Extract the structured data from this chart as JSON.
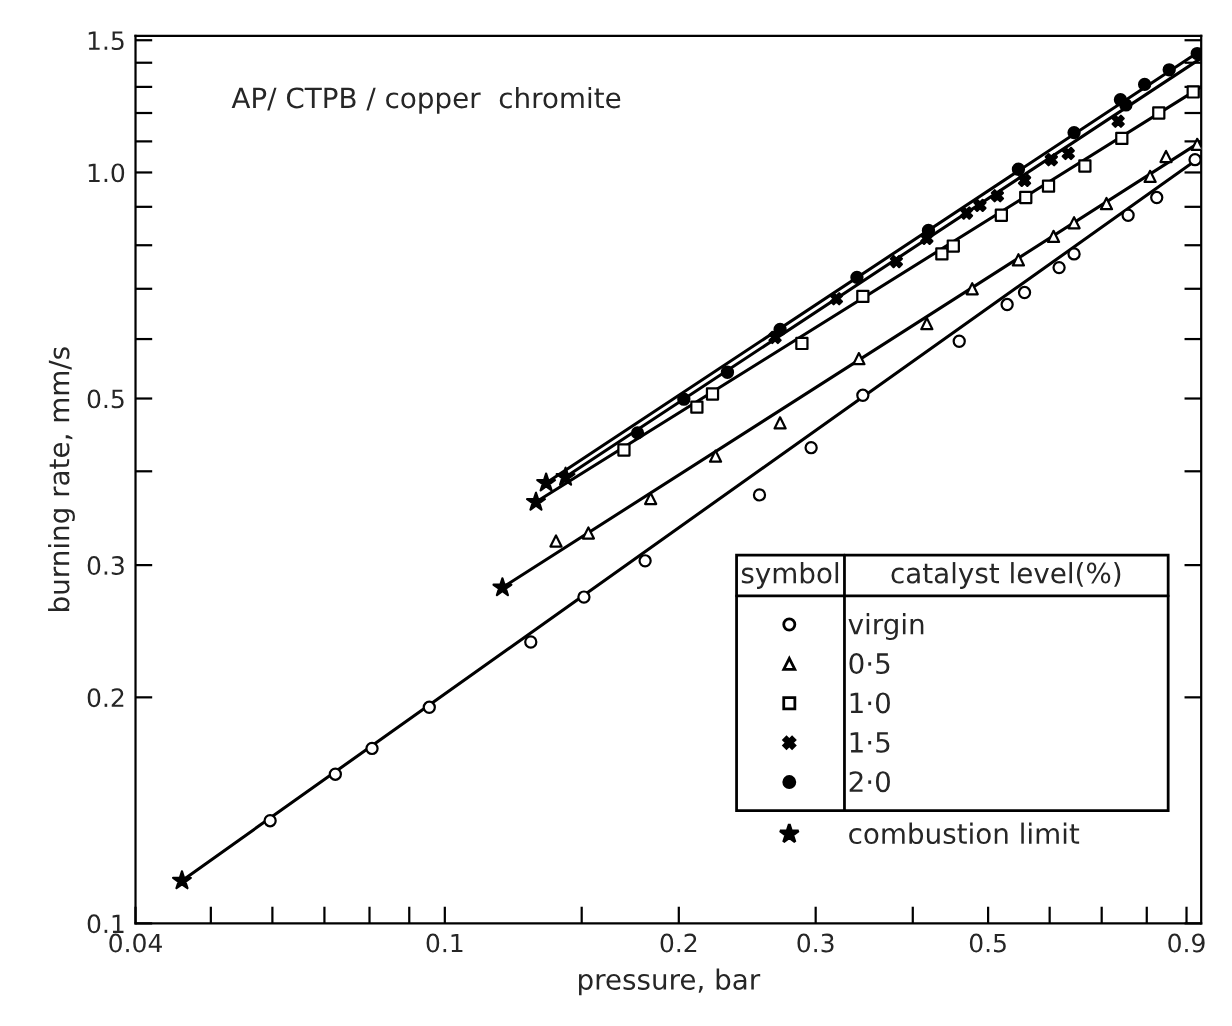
{
  "chart_data": {
    "type": "scatter",
    "title": "AP/ CTPB / copper  chromite",
    "xlabel": "pressure, bar",
    "ylabel": "burning rate, mm/s",
    "legend_title": "catalyst level(%)",
    "annotations": [
      "symbol"
    ],
    "log": "xy",
    "grid": false,
    "legend": "bottom right",
    "xlim": [
      0.04,
      0.94
    ],
    "ylim": [
      0.1,
      1.52
    ],
    "xticks": [
      0.04,
      {
        "value": 0.05,
        "label": null
      },
      {
        "value": 0.06,
        "label": null
      },
      {
        "value": 0.07,
        "label": null
      },
      {
        "value": 0.08,
        "label": null
      },
      {
        "value": 0.09,
        "label": null
      },
      0.1,
      {
        "value": 0.15,
        "label": null
      },
      0.2,
      0.3,
      {
        "value": 0.4,
        "label": null
      },
      0.5,
      {
        "value": 0.6,
        "label": null
      },
      {
        "value": 0.7,
        "label": null
      },
      {
        "value": 0.8,
        "label": null
      },
      0.9
    ],
    "yticks": [
      0.1,
      0.2,
      0.3,
      {
        "value": 0.4,
        "label": null
      },
      0.5,
      {
        "value": 0.6,
        "label": null
      },
      {
        "value": 0.7,
        "label": null
      },
      {
        "value": 0.8,
        "label": null
      },
      {
        "value": 0.9,
        "label": null
      },
      {
        "value": 1.0,
        "label": "1.0"
      },
      {
        "value": 1.1,
        "label": null
      },
      {
        "value": 1.2,
        "label": null
      },
      {
        "value": 1.3,
        "label": null
      },
      {
        "value": 1.4,
        "label": null
      },
      1.5
    ],
    "series": [
      {
        "name": "virgin",
        "marker": "circle",
        "color": "#000000",
        "x": [
          0.0596,
          0.0723,
          0.0806,
          0.0955,
          0.129,
          0.151,
          0.181,
          0.254,
          0.296,
          0.345,
          0.459,
          0.529,
          0.557,
          0.617,
          0.645,
          0.757,
          0.824,
          0.923
        ],
        "values": [
          0.137,
          0.158,
          0.171,
          0.194,
          0.237,
          0.272,
          0.304,
          0.372,
          0.43,
          0.505,
          0.596,
          0.667,
          0.692,
          0.747,
          0.779,
          0.877,
          0.926,
          1.04
        ]
      },
      {
        "name": "0·5",
        "marker": "triangle",
        "color": "#000000",
        "x": [
          0.139,
          0.153,
          0.184,
          0.223,
          0.27,
          0.341,
          0.417,
          0.477,
          0.547,
          0.607,
          0.645,
          0.71,
          0.808,
          0.847,
          0.929
        ],
        "values": [
          0.323,
          0.331,
          0.368,
          0.419,
          0.464,
          0.565,
          0.629,
          0.7,
          0.765,
          0.822,
          0.857,
          0.909,
          0.988,
          1.05,
          1.09
        ]
      },
      {
        "name": "1·0",
        "marker": "square",
        "color": "#000000",
        "x": [
          0.17,
          0.211,
          0.221,
          0.288,
          0.345,
          0.436,
          0.451,
          0.52,
          0.559,
          0.598,
          0.666,
          0.743,
          0.829,
          0.918
        ],
        "values": [
          0.427,
          0.487,
          0.507,
          0.592,
          0.684,
          0.779,
          0.798,
          0.877,
          0.926,
          0.959,
          1.02,
          1.11,
          1.2,
          1.28
        ]
      },
      {
        "name": "1·5",
        "marker": "cross",
        "color": "#000000",
        "x": [
          0.266,
          0.319,
          0.381,
          0.417,
          0.469,
          0.488,
          0.514,
          0.557,
          0.603,
          0.634,
          0.735
        ],
        "values": [
          0.603,
          0.679,
          0.761,
          0.817,
          0.883,
          0.904,
          0.931,
          0.976,
          1.04,
          1.06,
          1.17
        ]
      },
      {
        "name": "2·0",
        "marker": "circle",
        "color": "#000000",
        "x": [
          0.177,
          0.203,
          0.231,
          0.27,
          0.339,
          0.419,
          0.547,
          0.645,
          0.74,
          0.752,
          0.795,
          0.855,
          0.929
        ],
        "values": [
          0.45,
          0.499,
          0.542,
          0.618,
          0.725,
          0.837,
          1.01,
          1.13,
          1.25,
          1.23,
          1.31,
          1.37,
          1.44
        ]
      },
      {
        "name": "combustion limit",
        "marker": "star",
        "color": "#000000",
        "x": [
          0.0459,
          0.1186,
          0.131,
          0.135,
          0.143
        ],
        "values": [
          0.114,
          0.28,
          0.364,
          0.386,
          0.393
        ]
      },
      {
        "type": "line",
        "color": "#000000",
        "x": [
          0.0459,
          0.94
        ],
        "values": [
          0.114,
          1.05
        ]
      },
      {
        "type": "line",
        "color": "#000000",
        "x": [
          0.1186,
          0.94
        ],
        "values": [
          0.28,
          1.1
        ]
      },
      {
        "type": "line",
        "color": "#000000",
        "x": [
          0.131,
          0.94
        ],
        "values": [
          0.364,
          1.3
        ]
      },
      {
        "type": "line",
        "color": "#000000",
        "x": [
          0.143,
          0.94
        ],
        "values": [
          0.393,
          1.42
        ]
      },
      {
        "type": "line",
        "color": "#000000",
        "x": [
          0.135,
          0.94
        ],
        "values": [
          0.386,
          1.455
        ]
      }
    ]
  }
}
